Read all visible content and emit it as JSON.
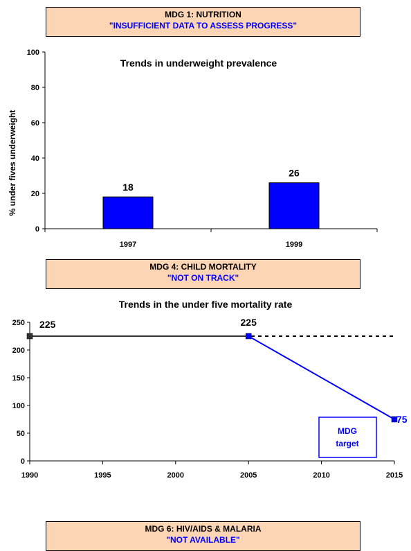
{
  "banners": {
    "nutrition": {
      "heading": "MDG 1: NUTRITION",
      "status": "\"INSUFFICIENT DATA TO ASSESS PROGRESS\""
    },
    "child_mortality": {
      "heading": "MDG 4: CHILD MORTALITY",
      "status": "\"NOT ON TRACK\""
    },
    "hiv": {
      "heading": "MDG 6: HIV/AIDS & MALARIA",
      "status": "\"NOT AVAILABLE\""
    }
  },
  "colors": {
    "banner_bg": "#fcd5b4",
    "status_text": "#0000ff",
    "bar_fill": "#0000ff",
    "trend_line": "#0000ff",
    "history_line": "#333333"
  },
  "chart_data": [
    {
      "type": "bar",
      "title": "Trends in underweight prevalence",
      "ylabel": "% under fives underweight",
      "xlabel": "",
      "categories": [
        "1997",
        "1999"
      ],
      "values": [
        18,
        26
      ],
      "data_labels": [
        "18",
        "26"
      ],
      "ylim": [
        0,
        100
      ],
      "yticks": [
        0,
        20,
        40,
        60,
        80,
        100
      ],
      "ytick_labels": [
        "0",
        "20",
        "40",
        "60",
        "80",
        "100"
      ],
      "grid": false
    },
    {
      "type": "line",
      "title": "Trends in the under five mortality rate",
      "xlabel": "",
      "ylabel": "",
      "xlim": [
        1990,
        2015
      ],
      "ylim": [
        0,
        250
      ],
      "xticks": [
        1990,
        1995,
        2000,
        2005,
        2010,
        2015
      ],
      "xtick_labels": [
        "1990",
        "1995",
        "2000",
        "2005",
        "2010",
        "2015"
      ],
      "yticks": [
        0,
        50,
        100,
        150,
        200,
        250
      ],
      "ytick_labels": [
        "0",
        "50",
        "100",
        "150",
        "200",
        "250"
      ],
      "grid": false,
      "series": [
        {
          "x": [
            1990,
            2005
          ],
          "y": [
            225,
            225
          ],
          "style": "solid"
        },
        {
          "x": [
            2005,
            2015
          ],
          "y": [
            225,
            75
          ],
          "style": "solid"
        },
        {
          "x": [
            1990,
            2015
          ],
          "y": [
            225,
            225
          ],
          "style": "dashed"
        }
      ],
      "data_labels": [
        {
          "x": 1990,
          "y": 225,
          "text": "225"
        },
        {
          "x": 2005,
          "y": 225,
          "text": "225"
        },
        {
          "x": 2015,
          "y": 75,
          "text": "75"
        }
      ],
      "annotation": {
        "line1": "MDG",
        "line2": "target"
      }
    }
  ]
}
